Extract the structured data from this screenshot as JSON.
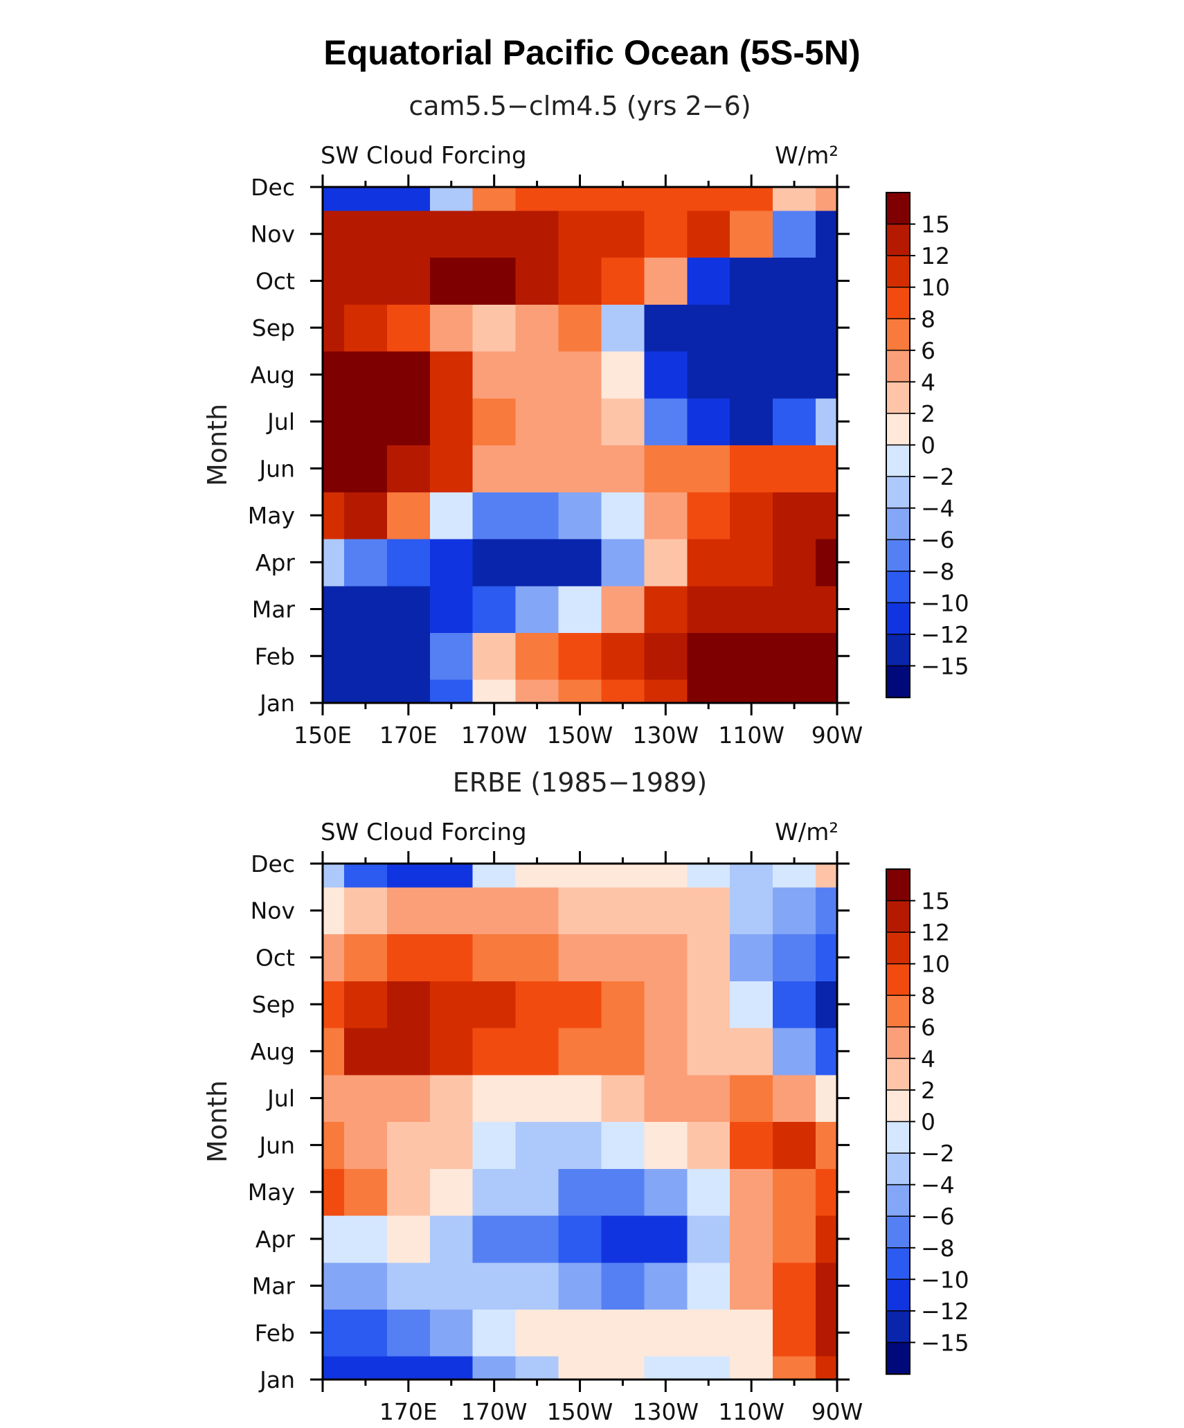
{
  "figure": {
    "title": "Equatorial Pacific Ocean (5S-5N)"
  },
  "colorbar_levels": [
    "15",
    "12",
    "10",
    "8",
    "6",
    "4",
    "2",
    "0",
    "−2",
    "−4",
    "−6",
    "−8",
    "−10",
    "−12",
    "−15"
  ],
  "colormap": [
    "#7f0000",
    "#b51a00",
    "#d42e00",
    "#f24b10",
    "#f87a3c",
    "#fb9f79",
    "#fdc4a8",
    "#fee8da",
    "#d5e7ff",
    "#adc8fa",
    "#84a6f6",
    "#5580f4",
    "#2b5bf0",
    "#1035e0",
    "#0825ac",
    "#00097a"
  ],
  "chart_data": [
    {
      "type": "heatmap",
      "subtitle": "cam5.5−clm4.5 (yrs 2−6)",
      "variable": "SW Cloud Forcing",
      "units": "W/m²",
      "ylabel": "Month",
      "y_categories": [
        "Jan",
        "Feb",
        "Mar",
        "Apr",
        "May",
        "Jun",
        "Jul",
        "Aug",
        "Sep",
        "Oct",
        "Nov",
        "Dec"
      ],
      "x_tick_labels": [
        "150E",
        "170E",
        "170W",
        "150W",
        "130W",
        "110W",
        "90W"
      ],
      "x_tick_lon": [
        150,
        170,
        190,
        210,
        230,
        250,
        270
      ],
      "xlim": [
        150,
        270
      ],
      "lon": [
        150,
        160,
        170,
        180,
        190,
        200,
        210,
        220,
        230,
        240,
        250,
        260,
        270
      ],
      "values": [
        [
          -15,
          -15,
          -15,
          -10,
          0,
          4,
          6,
          8,
          10,
          15,
          15,
          15,
          15
        ],
        [
          -15,
          -15,
          -15,
          -8,
          2,
          6,
          8,
          10,
          12,
          15,
          15,
          15,
          15
        ],
        [
          -15,
          -15,
          -15,
          -12,
          -10,
          -6,
          -2,
          4,
          10,
          12,
          12,
          12,
          12
        ],
        [
          -4,
          -8,
          -10,
          -12,
          -15,
          -15,
          -15,
          -6,
          2,
          10,
          10,
          12,
          15
        ],
        [
          10,
          12,
          6,
          -2,
          -8,
          -8,
          -6,
          -2,
          4,
          8,
          10,
          12,
          12
        ],
        [
          15,
          15,
          12,
          10,
          4,
          4,
          4,
          4,
          6,
          6,
          8,
          8,
          8
        ],
        [
          15,
          15,
          15,
          10,
          6,
          4,
          4,
          2,
          -8,
          -12,
          -15,
          -10,
          -4
        ],
        [
          15,
          15,
          15,
          10,
          4,
          4,
          4,
          0,
          -12,
          -15,
          -15,
          -15,
          -15
        ],
        [
          12,
          10,
          8,
          4,
          2,
          4,
          6,
          -4,
          -15,
          -15,
          -15,
          -15,
          -15
        ],
        [
          12,
          12,
          12,
          15,
          15,
          12,
          10,
          8,
          4,
          -12,
          -15,
          -15,
          -15
        ],
        [
          12,
          12,
          12,
          12,
          12,
          12,
          10,
          10,
          8,
          10,
          6,
          -8,
          -15
        ],
        [
          -12,
          -12,
          -12,
          -4,
          6,
          8,
          8,
          8,
          8,
          8,
          8,
          2,
          4
        ]
      ]
    },
    {
      "type": "heatmap",
      "subtitle": "ERBE (1985−1989)",
      "variable": "SW Cloud Forcing",
      "units": "W/m²",
      "ylabel": "Month",
      "y_categories": [
        "Jan",
        "Feb",
        "Mar",
        "Apr",
        "May",
        "Jun",
        "Jul",
        "Aug",
        "Sep",
        "Oct",
        "Nov",
        "Dec"
      ],
      "x_tick_labels": [
        "170E",
        "170W",
        "150W",
        "130W",
        "110W",
        "90W"
      ],
      "x_tick_lon": [
        170,
        190,
        210,
        230,
        250,
        270
      ],
      "xlim": [
        150,
        270
      ],
      "lon": [
        150,
        160,
        170,
        180,
        190,
        200,
        210,
        220,
        230,
        240,
        250,
        260,
        270
      ],
      "values": [
        [
          -12,
          -12,
          -12,
          -12,
          -6,
          -4,
          0,
          0,
          -2,
          -2,
          0,
          6,
          10
        ],
        [
          -10,
          -10,
          -8,
          -6,
          -2,
          0,
          0,
          0,
          0,
          0,
          0,
          8,
          12
        ],
        [
          -6,
          -6,
          -4,
          -4,
          -4,
          -4,
          -6,
          -8,
          -6,
          -2,
          4,
          8,
          12
        ],
        [
          -2,
          -2,
          0,
          -4,
          -8,
          -8,
          -10,
          -12,
          -12,
          -4,
          4,
          6,
          10
        ],
        [
          8,
          6,
          2,
          0,
          -4,
          -4,
          -8,
          -8,
          -6,
          -2,
          4,
          6,
          8
        ],
        [
          6,
          4,
          2,
          2,
          -2,
          -4,
          -4,
          -2,
          0,
          2,
          8,
          10,
          6
        ],
        [
          4,
          4,
          4,
          2,
          0,
          0,
          0,
          2,
          4,
          4,
          6,
          4,
          0
        ],
        [
          6,
          12,
          12,
          10,
          8,
          8,
          6,
          6,
          4,
          2,
          2,
          -6,
          -10
        ],
        [
          8,
          10,
          12,
          10,
          10,
          8,
          8,
          6,
          4,
          2,
          -2,
          -10,
          -15
        ],
        [
          4,
          6,
          8,
          8,
          6,
          6,
          4,
          4,
          4,
          2,
          -6,
          -8,
          -10
        ],
        [
          0,
          2,
          4,
          4,
          4,
          4,
          2,
          2,
          2,
          2,
          -4,
          -6,
          -8
        ],
        [
          -4,
          -10,
          -12,
          -12,
          -2,
          0,
          0,
          0,
          0,
          -2,
          -4,
          -2,
          2
        ]
      ]
    }
  ]
}
